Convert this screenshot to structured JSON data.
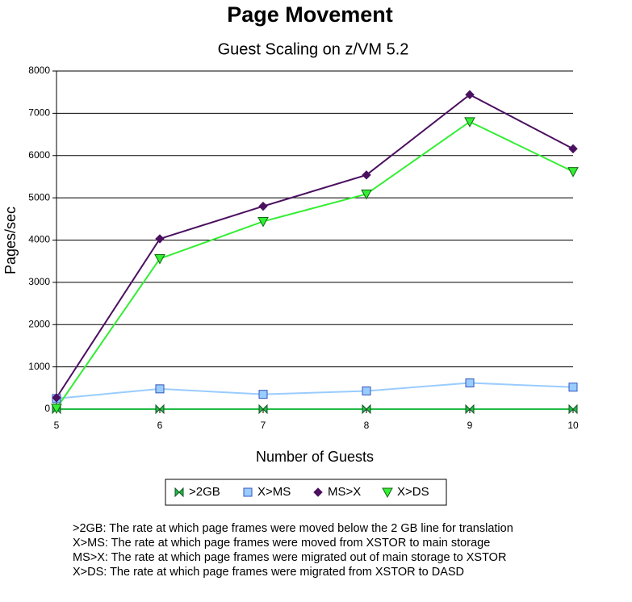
{
  "chart_data": {
    "type": "line",
    "title": "Page Movement",
    "subtitle": "Guest Scaling on z/VM 5.2",
    "x_label": "Number of Guests",
    "y_label": "Pages/sec",
    "x": [
      5,
      6,
      7,
      8,
      9,
      10
    ],
    "xlim": [
      5,
      10
    ],
    "xticks": [
      5,
      6,
      7,
      8,
      9,
      10
    ],
    "ylim": [
      0,
      8000
    ],
    "yticks": [
      0,
      1000,
      2000,
      3000,
      4000,
      5000,
      6000,
      7000,
      8000
    ],
    "grid": true,
    "legend": "bottom",
    "series": [
      {
        "name": ">2GB",
        "color": "#22bb44",
        "marker": "bowtie",
        "values": [
          0,
          0,
          0,
          0,
          0,
          0
        ]
      },
      {
        "name": "X>MS",
        "color": "#99ccff",
        "marker": "square",
        "values": [
          250,
          480,
          350,
          430,
          620,
          520
        ]
      },
      {
        "name": "MS>X",
        "color": "#4b1060",
        "marker": "diamond",
        "values": [
          270,
          4030,
          4800,
          5540,
          7440,
          6160
        ]
      },
      {
        "name": "X>DS",
        "color": "#33ee33",
        "marker": "triangle-down",
        "values": [
          20,
          3560,
          4440,
          5090,
          6800,
          5620
        ]
      }
    ],
    "notes": [
      ">2GB:  The rate at which page frames were moved below the 2 GB line for translation",
      "X>MS: The rate at which page frames were moved from XSTOR to main storage",
      "MS>X: The rate at which page frames were migrated out of main storage to XSTOR",
      "X>DS: The rate at which page frames were migrated from XSTOR to DASD"
    ]
  }
}
